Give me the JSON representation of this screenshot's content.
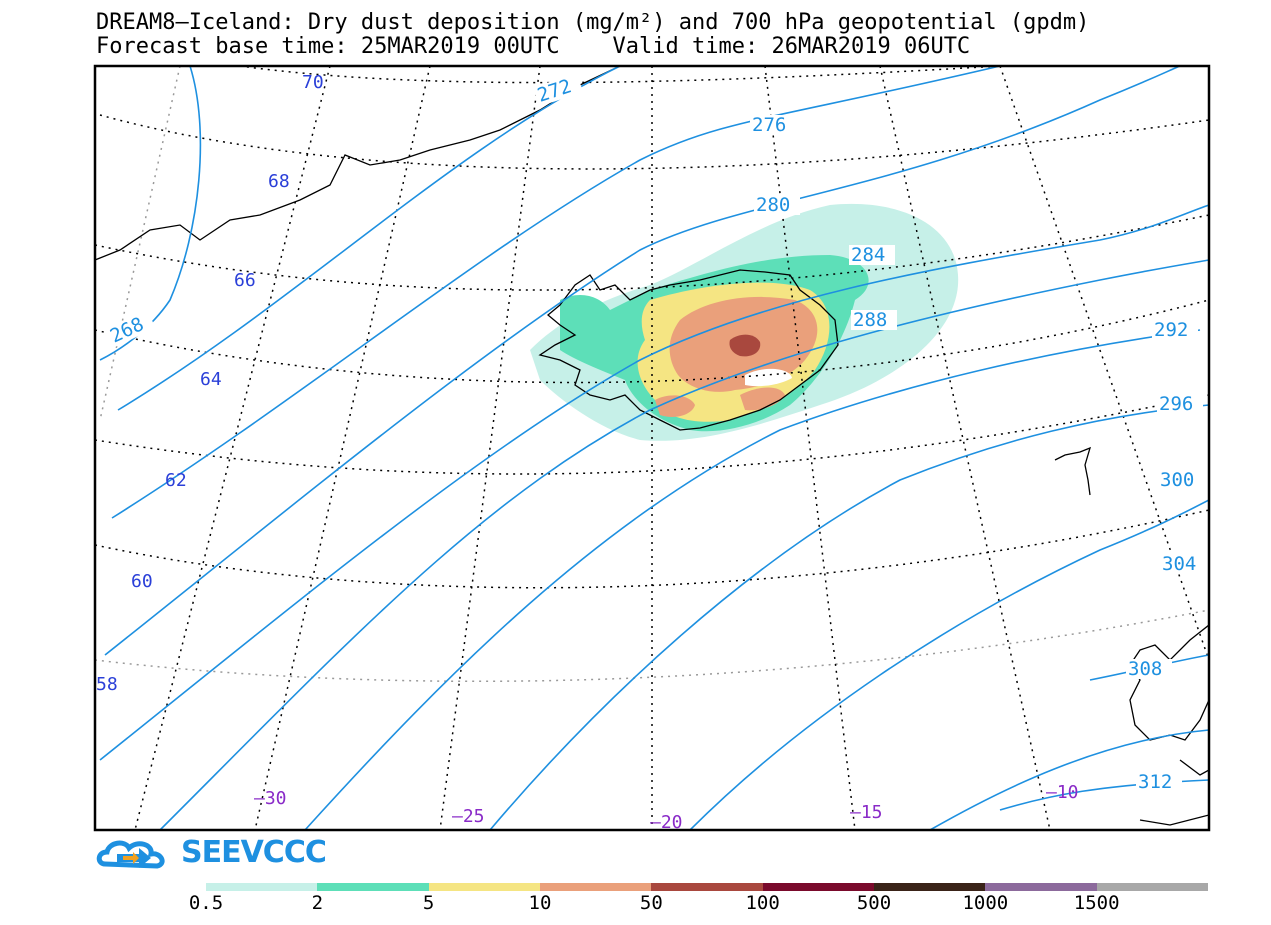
{
  "header": {
    "title_line1": "DREAM8–Iceland: Dry dust deposition (mg/m²) and 700 hPa geopotential (gpdm)",
    "title_line2": "Forecast base time: 25MAR2019 00UTC    Valid time: 26MAR2019 06UTC"
  },
  "map": {
    "latitude_labels": [
      "70",
      "68",
      "66",
      "64",
      "62",
      "60",
      "58"
    ],
    "longitude_labels": [
      "-30",
      "-25",
      "-20",
      "-15",
      "-10"
    ],
    "longitude_display": [
      "–30",
      "–25",
      "–20",
      "–15",
      "–10"
    ],
    "contour_labels": [
      "268",
      "272",
      "276",
      "280",
      "284",
      "288",
      "292",
      "296",
      "300",
      "304",
      "308",
      "312"
    ],
    "colors": {
      "contour": "#1e90e0",
      "latitude_label": "#2a3fd8",
      "longitude_label": "#8a2bc8",
      "coast": "#000000"
    }
  },
  "logo": {
    "text": "SEEVCCC",
    "icon": "cloud-logo-icon",
    "color": "#1e90e0"
  },
  "legend": {
    "colors": [
      "#c6f0e8",
      "#5ddfb8",
      "#f5e583",
      "#eaa07b",
      "#a9483e",
      "#7a0a2c",
      "#3a2318",
      "#8c6a9c",
      "#a8a8a8"
    ],
    "labels": [
      "0.5",
      "2",
      "5",
      "10",
      "50",
      "100",
      "500",
      "1000",
      "1500"
    ]
  }
}
